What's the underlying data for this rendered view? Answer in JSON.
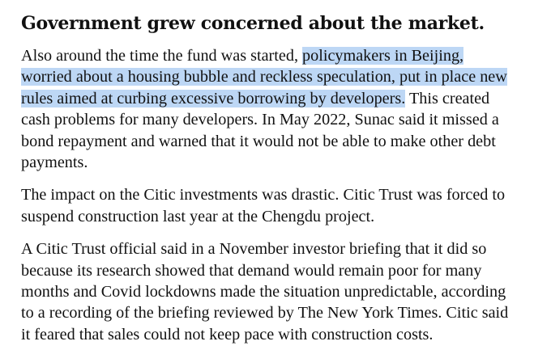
{
  "article": {
    "headline": "Government grew concerned about the market.",
    "paragraph1": {
      "line1_plain": "Also around the time the fund was started, ",
      "line1_highlight": "policymakers in Beijing,",
      "line2_highlight": "worried about a housing bubble and reckless speculation, put in place new",
      "line3_highlight": "rules aimed at curbing excessive borrowing by developers.",
      "line3_plain": " This created",
      "line4": "cash problems for many developers. In May 2022, Sunac said it missed a",
      "line5": "bond repayment and warned that it would not be able to make other debt",
      "line6": "payments."
    },
    "paragraph2": {
      "line1": "The impact on the Citic investments was drastic. Citic Trust was forced to",
      "line2": "suspend construction last year at the Chengdu project."
    },
    "paragraph3": {
      "line1": "A Citic Trust official said in a November investor briefing that it did so",
      "line2": "because its research showed that demand would remain poor for many",
      "line3": "months and Covid lockdowns made the situation unpredictable, according",
      "line4": "to a recording of the briefing reviewed by The New York Times. Citic said",
      "line5": "it feared that sales could not keep pace with construction costs."
    },
    "highlight_color": "#bdd7f5"
  }
}
